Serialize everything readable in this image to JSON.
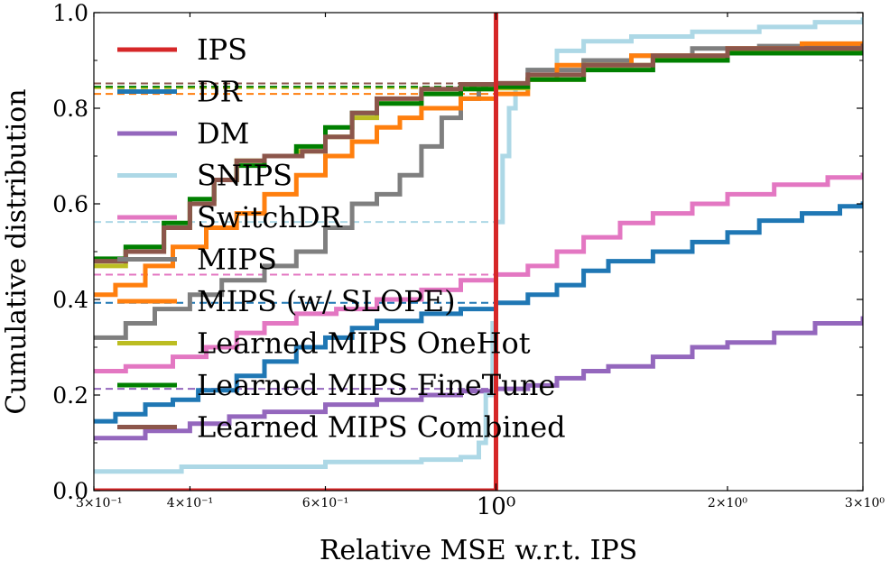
{
  "chart_data": {
    "type": "line",
    "xlabel": "Relative MSE w.r.t. IPS",
    "ylabel": "Cumulative distribution",
    "xscale": "log",
    "xlim": [
      0.3,
      3.0
    ],
    "ylim": [
      0.0,
      1.0
    ],
    "grid": false,
    "legend_placement": "upper-left",
    "x_ticks": [
      {
        "value": 0.3,
        "label": "3×10⁻¹",
        "size": "small"
      },
      {
        "value": 0.4,
        "label": "4×10⁻¹",
        "size": "small"
      },
      {
        "value": 0.6,
        "label": "6×10⁻¹",
        "size": "small"
      },
      {
        "value": 1.0,
        "label": "10⁰",
        "size": "large"
      },
      {
        "value": 2.0,
        "label": "2×10⁰",
        "size": "small"
      },
      {
        "value": 3.0,
        "label": "3×10⁰",
        "size": "small"
      }
    ],
    "y_ticks": [
      {
        "value": 0.0,
        "label": "0.0"
      },
      {
        "value": 0.2,
        "label": "0.2"
      },
      {
        "value": 0.4,
        "label": "0.4"
      },
      {
        "value": 0.6,
        "label": "0.6"
      },
      {
        "value": 0.8,
        "label": "0.8"
      },
      {
        "value": 1.0,
        "label": "1.0"
      }
    ],
    "series": [
      {
        "name": "IPS",
        "color": "#d62728",
        "style": "vline",
        "x": 1.0
      },
      {
        "name": "DR",
        "color": "#1f77b4",
        "hline": 0.393,
        "points": [
          [
            0.3,
            0.145
          ],
          [
            0.32,
            0.16
          ],
          [
            0.35,
            0.18
          ],
          [
            0.38,
            0.19
          ],
          [
            0.41,
            0.21
          ],
          [
            0.46,
            0.24
          ],
          [
            0.5,
            0.27
          ],
          [
            0.55,
            0.3
          ],
          [
            0.6,
            0.32
          ],
          [
            0.65,
            0.34
          ],
          [
            0.7,
            0.355
          ],
          [
            0.8,
            0.37
          ],
          [
            0.9,
            0.38
          ],
          [
            1.0,
            0.393
          ],
          [
            1.1,
            0.41
          ],
          [
            1.2,
            0.43
          ],
          [
            1.3,
            0.46
          ],
          [
            1.4,
            0.48
          ],
          [
            1.6,
            0.5
          ],
          [
            1.8,
            0.52
          ],
          [
            2.0,
            0.54
          ],
          [
            2.2,
            0.565
          ],
          [
            2.5,
            0.58
          ],
          [
            2.8,
            0.595
          ],
          [
            3.0,
            0.605
          ]
        ]
      },
      {
        "name": "DM",
        "color": "#9467bd",
        "hline": 0.213,
        "points": [
          [
            0.3,
            0.11
          ],
          [
            0.35,
            0.125
          ],
          [
            0.4,
            0.14
          ],
          [
            0.45,
            0.155
          ],
          [
            0.5,
            0.165
          ],
          [
            0.6,
            0.18
          ],
          [
            0.7,
            0.19
          ],
          [
            0.8,
            0.2
          ],
          [
            0.9,
            0.208
          ],
          [
            1.0,
            0.213
          ],
          [
            1.1,
            0.22
          ],
          [
            1.2,
            0.235
          ],
          [
            1.3,
            0.25
          ],
          [
            1.4,
            0.26
          ],
          [
            1.6,
            0.28
          ],
          [
            1.8,
            0.3
          ],
          [
            2.0,
            0.31
          ],
          [
            2.3,
            0.33
          ],
          [
            2.6,
            0.35
          ],
          [
            3.0,
            0.365
          ]
        ]
      },
      {
        "name": "SNIPS",
        "color": "#add8e6",
        "hline": 0.562,
        "points": [
          [
            0.3,
            0.04
          ],
          [
            0.38,
            0.04
          ],
          [
            0.39,
            0.05
          ],
          [
            0.55,
            0.05
          ],
          [
            0.6,
            0.06
          ],
          [
            0.75,
            0.06
          ],
          [
            0.8,
            0.065
          ],
          [
            0.9,
            0.07
          ],
          [
            0.95,
            0.1
          ],
          [
            0.97,
            0.2
          ],
          [
            0.99,
            0.35
          ],
          [
            1.0,
            0.562
          ],
          [
            1.02,
            0.7
          ],
          [
            1.04,
            0.8
          ],
          [
            1.06,
            0.85
          ],
          [
            1.1,
            0.88
          ],
          [
            1.2,
            0.92
          ],
          [
            1.3,
            0.94
          ],
          [
            1.5,
            0.95
          ],
          [
            1.8,
            0.96
          ],
          [
            2.2,
            0.97
          ],
          [
            2.6,
            0.98
          ],
          [
            3.0,
            0.99
          ]
        ]
      },
      {
        "name": "SwitchDR",
        "color": "#e377c2",
        "hline": 0.452,
        "points": [
          [
            0.3,
            0.25
          ],
          [
            0.33,
            0.26
          ],
          [
            0.38,
            0.28
          ],
          [
            0.42,
            0.3
          ],
          [
            0.46,
            0.33
          ],
          [
            0.5,
            0.35
          ],
          [
            0.55,
            0.37
          ],
          [
            0.62,
            0.38
          ],
          [
            0.7,
            0.4
          ],
          [
            0.8,
            0.42
          ],
          [
            0.9,
            0.44
          ],
          [
            1.0,
            0.452
          ],
          [
            1.1,
            0.47
          ],
          [
            1.2,
            0.5
          ],
          [
            1.3,
            0.53
          ],
          [
            1.45,
            0.56
          ],
          [
            1.6,
            0.58
          ],
          [
            1.8,
            0.6
          ],
          [
            2.0,
            0.62
          ],
          [
            2.3,
            0.64
          ],
          [
            2.7,
            0.655
          ],
          [
            3.0,
            0.665
          ]
        ]
      },
      {
        "name": "MIPS",
        "color": "#7f7f7f",
        "hline": 0.852,
        "points": [
          [
            0.3,
            0.32
          ],
          [
            0.33,
            0.35
          ],
          [
            0.36,
            0.38
          ],
          [
            0.4,
            0.41
          ],
          [
            0.44,
            0.44
          ],
          [
            0.5,
            0.47
          ],
          [
            0.55,
            0.5
          ],
          [
            0.6,
            0.55
          ],
          [
            0.65,
            0.6
          ],
          [
            0.7,
            0.62
          ],
          [
            0.75,
            0.66
          ],
          [
            0.8,
            0.72
          ],
          [
            0.85,
            0.78
          ],
          [
            0.9,
            0.82
          ],
          [
            0.95,
            0.84
          ],
          [
            1.0,
            0.852
          ],
          [
            1.1,
            0.88
          ],
          [
            1.3,
            0.9
          ],
          [
            1.5,
            0.91
          ],
          [
            1.8,
            0.925
          ],
          [
            2.2,
            0.93
          ],
          [
            3.0,
            0.935
          ]
        ]
      },
      {
        "name": "MIPS (w/ SLOPE)",
        "color": "#ff7f0e",
        "hline": 0.83,
        "points": [
          [
            0.3,
            0.41
          ],
          [
            0.32,
            0.43
          ],
          [
            0.35,
            0.47
          ],
          [
            0.38,
            0.51
          ],
          [
            0.42,
            0.55
          ],
          [
            0.46,
            0.58
          ],
          [
            0.5,
            0.62
          ],
          [
            0.55,
            0.66
          ],
          [
            0.6,
            0.7
          ],
          [
            0.65,
            0.73
          ],
          [
            0.7,
            0.76
          ],
          [
            0.75,
            0.78
          ],
          [
            0.8,
            0.8
          ],
          [
            0.9,
            0.82
          ],
          [
            1.0,
            0.83
          ],
          [
            1.1,
            0.86
          ],
          [
            1.2,
            0.89
          ],
          [
            1.5,
            0.91
          ],
          [
            2.0,
            0.925
          ],
          [
            2.5,
            0.935
          ],
          [
            3.0,
            0.94
          ]
        ]
      },
      {
        "name": "Learned MIPS OneHot",
        "color": "#bcbd22",
        "hline": 0.842,
        "points": [
          [
            0.3,
            0.47
          ],
          [
            0.33,
            0.5
          ],
          [
            0.37,
            0.55
          ],
          [
            0.4,
            0.6
          ],
          [
            0.43,
            0.65
          ],
          [
            0.46,
            0.69
          ],
          [
            0.5,
            0.7
          ],
          [
            0.55,
            0.71
          ],
          [
            0.6,
            0.74
          ],
          [
            0.65,
            0.78
          ],
          [
            0.7,
            0.81
          ],
          [
            0.8,
            0.83
          ],
          [
            0.9,
            0.84
          ],
          [
            1.0,
            0.842
          ],
          [
            1.1,
            0.86
          ],
          [
            1.3,
            0.89
          ],
          [
            1.6,
            0.905
          ],
          [
            2.0,
            0.92
          ],
          [
            3.0,
            0.935
          ]
        ]
      },
      {
        "name": "Learned MIPS FineTune",
        "color": "#008000",
        "hline": 0.845,
        "points": [
          [
            0.3,
            0.485
          ],
          [
            0.33,
            0.51
          ],
          [
            0.37,
            0.56
          ],
          [
            0.4,
            0.61
          ],
          [
            0.43,
            0.65
          ],
          [
            0.46,
            0.68
          ],
          [
            0.5,
            0.7
          ],
          [
            0.55,
            0.72
          ],
          [
            0.6,
            0.76
          ],
          [
            0.65,
            0.79
          ],
          [
            0.7,
            0.81
          ],
          [
            0.8,
            0.83
          ],
          [
            0.9,
            0.84
          ],
          [
            1.0,
            0.845
          ],
          [
            1.1,
            0.86
          ],
          [
            1.3,
            0.88
          ],
          [
            1.6,
            0.9
          ],
          [
            2.0,
            0.915
          ],
          [
            3.0,
            0.93
          ]
        ]
      },
      {
        "name": "Learned MIPS Combined",
        "color": "#8c564b",
        "hline": 0.852,
        "points": [
          [
            0.3,
            0.48
          ],
          [
            0.33,
            0.5
          ],
          [
            0.37,
            0.55
          ],
          [
            0.4,
            0.6
          ],
          [
            0.43,
            0.65
          ],
          [
            0.46,
            0.69
          ],
          [
            0.5,
            0.7
          ],
          [
            0.56,
            0.71
          ],
          [
            0.6,
            0.74
          ],
          [
            0.65,
            0.79
          ],
          [
            0.7,
            0.82
          ],
          [
            0.8,
            0.84
          ],
          [
            0.9,
            0.85
          ],
          [
            1.0,
            0.852
          ],
          [
            1.1,
            0.87
          ],
          [
            1.3,
            0.89
          ],
          [
            1.6,
            0.91
          ],
          [
            2.0,
            0.925
          ],
          [
            3.0,
            0.935
          ]
        ]
      }
    ]
  }
}
